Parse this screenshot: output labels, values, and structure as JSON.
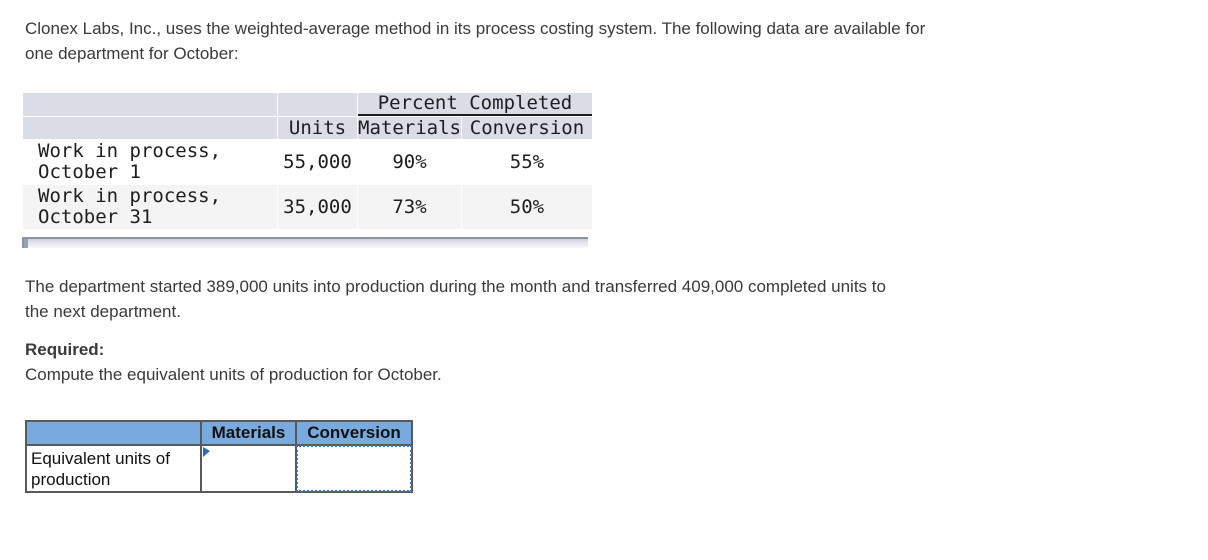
{
  "intro": {
    "text": "Clonex Labs, Inc., uses the weighted-average method in its process costing system. The following data are available for\none department for October:"
  },
  "data_table": {
    "group_header": "Percent Completed",
    "columns": [
      "",
      "Units",
      "Materials",
      "Conversion"
    ],
    "rows": [
      {
        "label": "Work in process,\nOctober 1",
        "units": "55,000",
        "materials": "90%",
        "conversion": "55%"
      },
      {
        "label": "Work in process,\nOctober 31",
        "units": "35,000",
        "materials": "73%",
        "conversion": "50%"
      }
    ]
  },
  "middle_text": "The department started 389,000 units into production during the month and transferred 409,000 completed units to\nthe next department.",
  "required": {
    "heading": "Required:",
    "instruction": "Compute the equivalent units of production for October."
  },
  "answer_table": {
    "columns": [
      "Materials",
      "Conversion"
    ],
    "row_label": "Equivalent units of\nproduction",
    "materials_value": "",
    "conversion_value": ""
  },
  "colors": {
    "answer_header_blue": "#79aadd",
    "selection_dotted_blue": "#3d6ebf",
    "cell_caret_blue": "#2e69b0",
    "data_header_bg": "#dadde6",
    "data_row_alt_bg": "#f4f4f4",
    "table_border": "#595959",
    "body_text": "#3a3a3a"
  }
}
